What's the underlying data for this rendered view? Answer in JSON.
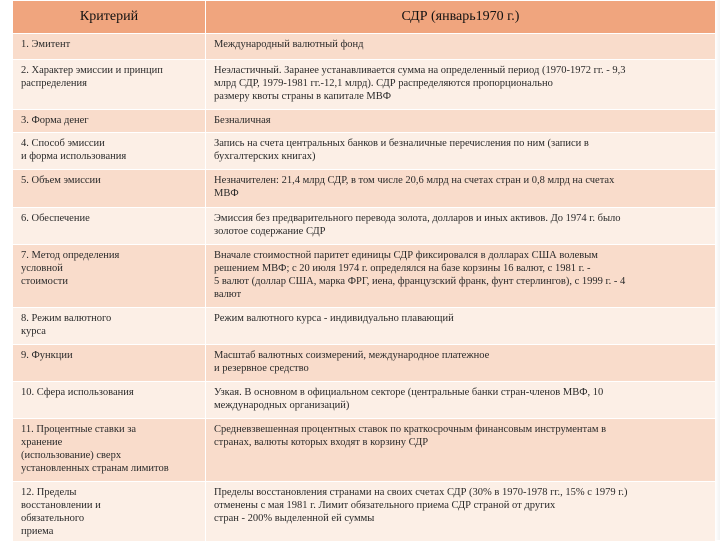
{
  "header": {
    "col1": "Критерий",
    "col2": "СДР (январь1970 г.)"
  },
  "rows": [
    {
      "criterion": [
        "1. Эмитент"
      ],
      "value": [
        "Международный валютный фонд"
      ]
    },
    {
      "criterion": [
        "2. Характер эмиссии и принцип",
        "распределения"
      ],
      "value": [
        "Неэластичный. Заранее устанавливается сумма на определенный период (1970-1972 гг. - 9,3",
        "млрд СДР, 1979-1981 гг.-12,1 млрд). СДР распределяются пропорционально",
        "размеру квоты страны в капитале МВФ"
      ]
    },
    {
      "criterion": [
        "3. Форма денег"
      ],
      "value": [
        "Безналичная"
      ]
    },
    {
      "criterion": [
        "4. Способ эмиссии",
        "и форма использования"
      ],
      "value": [
        "Запись на счета центральных банков и безналичные перечисления по ним (записи в",
        "бухгалтерских книгах)"
      ]
    },
    {
      "criterion": [
        "5. Объем эмиссии"
      ],
      "value": [
        "Незначителен: 21,4 млрд СДР, в том числе 20,6 млрд на счетах стран и 0,8 млрд на счетах",
        "МВФ"
      ]
    },
    {
      "criterion": [
        "6. Обеспечение"
      ],
      "value": [
        "Эмиссия без предварительного перевода золота, долларов и иных активов. До 1974 г. было",
        "золотое содержание СДР"
      ]
    },
    {
      "criterion": [
        "7. Метод определения",
        "условной",
        "стоимости"
      ],
      "value": [
        "Вначале стоимостной паритет единицы СДР фиксировался в долларах США волевым",
        "решением МВФ; с 20 июля 1974 г. определялся на базе корзины 16 валют, с 1981 г. -",
        "5 валют (доллар США, марка ФРГ, иена, французский франк, фунт стерлингов), с 1999 г. - 4",
        "валют"
      ]
    },
    {
      "criterion": [
        "8. Режим валютного",
        "курса"
      ],
      "value": [
        "Режим валютного курса - индивидуально плавающий"
      ]
    },
    {
      "criterion": [
        "9. Функции"
      ],
      "value": [
        "Масштаб валютных соизмерений, международное платежное",
        "и резервное средство"
      ]
    },
    {
      "criterion": [
        "10. Сфера использования"
      ],
      "value": [
        "Узкая. В основном в официальном секторе (центральные банки стран-членов МВФ, 10",
        "международных организаций)"
      ]
    },
    {
      "criterion": [
        "11. Процентные ставки за",
        "хранение",
        "(использование) сверх",
        "установленных странам лимитов"
      ],
      "value": [
        "Средневзвешенная процентных ставок по краткосрочным финансовым инструментам в",
        "странах, валюты которых входят в корзину СДР"
      ]
    },
    {
      "criterion": [
        "12. Пределы",
        "восстановлении и",
        "обязательного",
        "приема"
      ],
      "value": [
        "Пределы восстановления странами на своих счетах СДР (30% в 1970-1978 гг., 15% с 1979 г.)",
        "отменены с мая 1981 г. Лимит обязательного приема СДР страной от других",
        "стран - 200% выделенной ей суммы"
      ]
    }
  ]
}
